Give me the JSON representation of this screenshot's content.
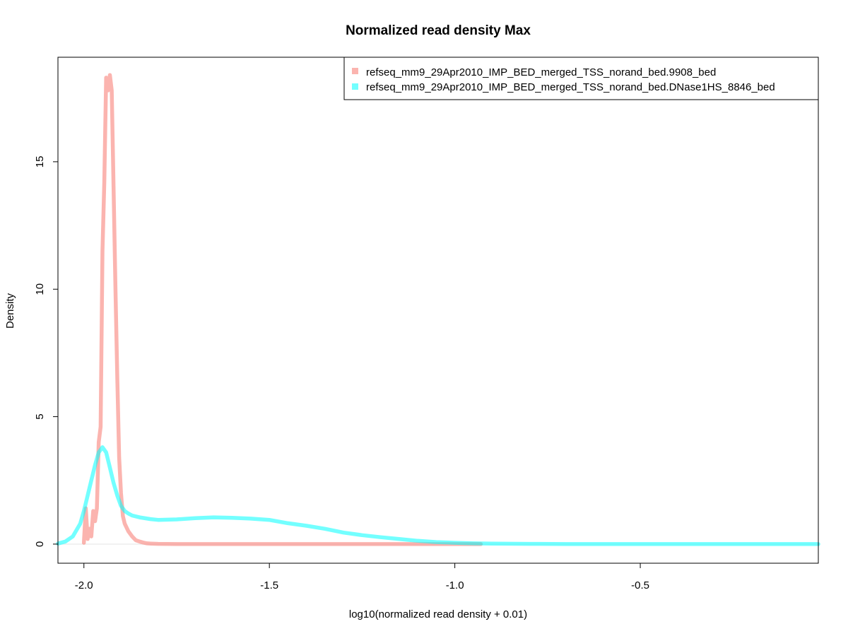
{
  "chart_data": {
    "type": "line",
    "title": "Normalized read density Max",
    "xlabel": "log10(normalized read density + 0.01)",
    "ylabel": "Density",
    "xlim": [
      -2.07,
      -0.02
    ],
    "ylim": [
      -0.75,
      19.1
    ],
    "xticks": [
      -2.0,
      -1.5,
      -1.0,
      -0.5
    ],
    "xtick_labels": [
      "-2.0",
      "-1.5",
      "-1.0",
      "-0.5"
    ],
    "yticks": [
      0,
      5,
      10,
      15
    ],
    "ytick_labels": [
      "0",
      "5",
      "10",
      "15"
    ],
    "grid": false,
    "legend_position": "top-right",
    "series": [
      {
        "name": "refseq_mm9_29Apr2010_IMP_BED_merged_TSS_norand_bed.9908_bed",
        "color": "#F8766D",
        "x": [
          -2.0,
          -1.995,
          -1.99,
          -1.985,
          -1.98,
          -1.975,
          -1.97,
          -1.965,
          -1.96,
          -1.955,
          -1.95,
          -1.945,
          -1.94,
          -1.935,
          -1.93,
          -1.925,
          -1.92,
          -1.915,
          -1.91,
          -1.905,
          -1.9,
          -1.895,
          -1.89,
          -1.88,
          -1.87,
          -1.86,
          -1.85,
          -1.84,
          -1.83,
          -1.82,
          -1.8,
          -1.75,
          -1.7,
          -1.5,
          -1.3,
          -1.1,
          -0.93
        ],
        "y": [
          0.05,
          1.4,
          0.2,
          0.6,
          0.3,
          1.3,
          0.9,
          1.4,
          4.0,
          4.6,
          11.5,
          14.2,
          18.3,
          17.8,
          18.4,
          17.8,
          14.0,
          10.0,
          6.5,
          3.4,
          2.0,
          1.1,
          0.8,
          0.5,
          0.3,
          0.15,
          0.1,
          0.06,
          0.03,
          0.02,
          0.01,
          0.0,
          0.0,
          0.0,
          0.0,
          0.0,
          0.0
        ]
      },
      {
        "name": "refseq_mm9_29Apr2010_IMP_BED_merged_TSS_norand_bed.DNase1HS_8846_bed",
        "color": "#00FFFF",
        "x": [
          -2.07,
          -2.05,
          -2.03,
          -2.01,
          -2.0,
          -1.99,
          -1.98,
          -1.97,
          -1.96,
          -1.95,
          -1.94,
          -1.93,
          -1.92,
          -1.91,
          -1.9,
          -1.89,
          -1.88,
          -1.87,
          -1.85,
          -1.82,
          -1.8,
          -1.75,
          -1.7,
          -1.65,
          -1.6,
          -1.55,
          -1.5,
          -1.45,
          -1.4,
          -1.35,
          -1.3,
          -1.25,
          -1.2,
          -1.15,
          -1.1,
          -1.05,
          -1.0,
          -0.95,
          -0.9,
          -0.8,
          -0.7,
          -0.5,
          -0.3,
          -0.02
        ],
        "y": [
          0.02,
          0.1,
          0.3,
          0.8,
          1.3,
          1.9,
          2.5,
          3.1,
          3.6,
          3.8,
          3.6,
          3.0,
          2.4,
          1.9,
          1.5,
          1.3,
          1.2,
          1.12,
          1.05,
          0.98,
          0.95,
          0.97,
          1.02,
          1.05,
          1.03,
          1.0,
          0.95,
          0.82,
          0.72,
          0.6,
          0.45,
          0.35,
          0.27,
          0.2,
          0.13,
          0.08,
          0.05,
          0.03,
          0.02,
          0.01,
          0.0,
          0.0,
          0.0,
          0.0
        ]
      }
    ]
  }
}
